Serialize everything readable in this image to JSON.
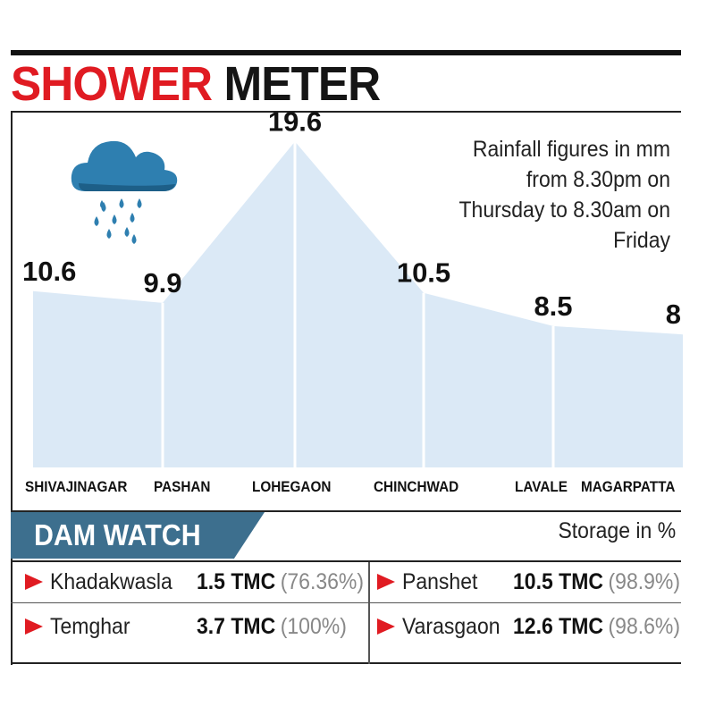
{
  "title": {
    "red": "SHOWER",
    "black": "METER"
  },
  "note": "Rainfall figures in mm from 8.30pm on Thursday to 8.30am on Friday",
  "icon": "rain-cloud-icon",
  "colors": {
    "accent": "#e01b22",
    "area_fill": "#dbe9f6",
    "dam_tab": "#3d6f8e",
    "cloud": "#2e7fb0"
  },
  "chart_data": {
    "type": "area",
    "categories": [
      "SHIVAJINAGAR",
      "PASHAN",
      "LOHEGAON",
      "CHINCHWAD",
      "LAVALE",
      "MAGARPATTA"
    ],
    "values": [
      10.6,
      9.9,
      19.6,
      10.5,
      8.5,
      8
    ],
    "value_labels": [
      "10.6",
      "9.9",
      "19.6",
      "10.5",
      "8.5",
      "8"
    ],
    "ylim": [
      0,
      20
    ],
    "grid": false
  },
  "dam_watch": {
    "title": "DAM WATCH",
    "unit_note": "Storage in %",
    "dams": [
      {
        "name": "Khadakwasla",
        "tmc": "1.5 TMC",
        "pct": "(76.36%)"
      },
      {
        "name": "Panshet",
        "tmc": "10.5 TMC",
        "pct": "(98.9%)"
      },
      {
        "name": "Temghar",
        "tmc": "3.7 TMC",
        "pct": "(100%)"
      },
      {
        "name": "Varasgaon",
        "tmc": "12.6 TMC",
        "pct": "(98.6%)"
      }
    ]
  }
}
